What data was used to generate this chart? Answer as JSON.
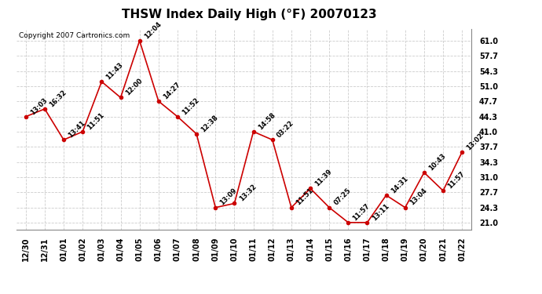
{
  "title": "THSW Index Daily High (°F) 20070123",
  "copyright": "Copyright 2007 Cartronics.com",
  "x_labels": [
    "12/30",
    "12/31",
    "01/01",
    "01/02",
    "01/03",
    "01/04",
    "01/05",
    "01/06",
    "01/07",
    "01/08",
    "01/09",
    "01/10",
    "01/11",
    "01/12",
    "01/13",
    "01/14",
    "01/15",
    "01/16",
    "01/17",
    "01/18",
    "01/19",
    "01/20",
    "01/21",
    "01/22"
  ],
  "y_values": [
    44.3,
    46.0,
    39.2,
    41.0,
    52.0,
    48.5,
    61.0,
    47.7,
    44.3,
    40.5,
    24.3,
    25.2,
    41.0,
    39.2,
    24.3,
    28.5,
    24.3,
    21.0,
    21.0,
    27.0,
    24.3,
    32.0,
    28.0,
    36.5
  ],
  "time_labels": [
    "13:03",
    "16:32",
    "13:41",
    "11:51",
    "11:43",
    "12:00",
    "12:04",
    "14:27",
    "11:52",
    "12:38",
    "13:09",
    "13:32",
    "14:58",
    "03:22",
    "11:51",
    "11:39",
    "07:25",
    "11:57",
    "13:11",
    "14:31",
    "13:04",
    "10:43",
    "11:57",
    "13:02"
  ],
  "y_ticks": [
    21.0,
    24.3,
    27.7,
    31.0,
    34.3,
    37.7,
    41.0,
    44.3,
    47.7,
    51.0,
    54.3,
    57.7,
    61.0
  ],
  "ylim": [
    19.5,
    63.5
  ],
  "xlim": [
    -0.5,
    23.5
  ],
  "line_color": "#cc0000",
  "marker_color": "#cc0000",
  "bg_color": "#ffffff",
  "plot_bg_color": "#ffffff",
  "grid_color": "#cccccc",
  "title_fontsize": 11,
  "tick_fontsize": 7,
  "annot_fontsize": 6,
  "copyright_fontsize": 6.5
}
